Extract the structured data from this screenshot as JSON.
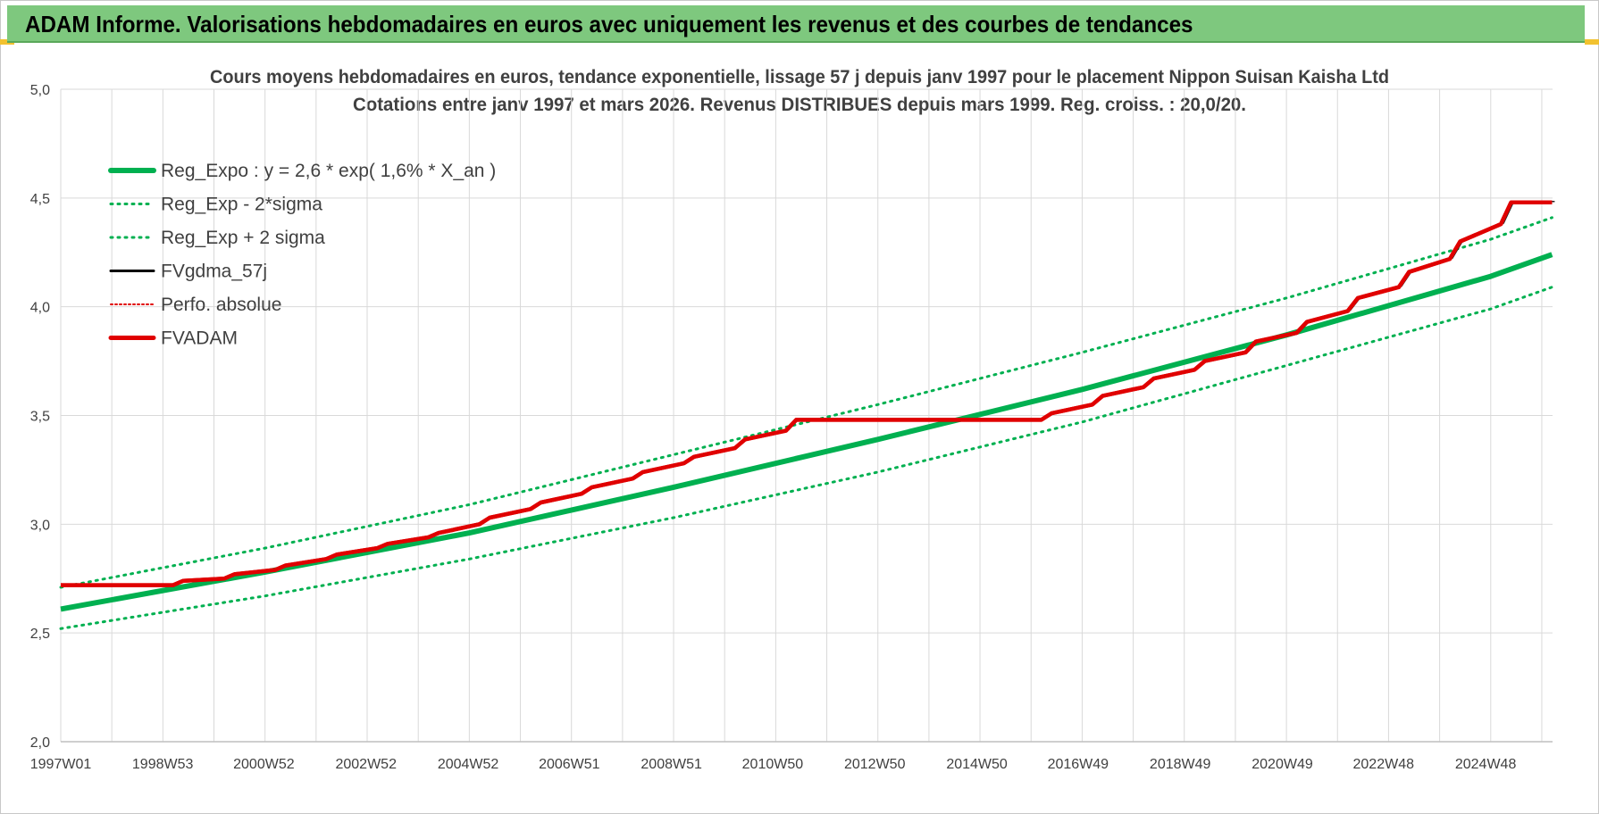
{
  "header": {
    "title": "ADAM Informe. Valorisations hebdomadaires en euros avec uniquement les revenus et des courbes de tendances"
  },
  "colors": {
    "header_bg": "#7ec87e",
    "reg_expo": "#00b050",
    "fvgdma": "#000000",
    "fvadam": "#e00000",
    "grid": "#d9d9d9"
  },
  "chart_data": {
    "type": "line",
    "title": "Cours moyens hebdomadaires en euros, tendance exponentielle, lissage 57 j depuis janv 1997  pour le placement Nippon Suisan Kaisha Ltd",
    "subtitle": "Cotations entre janv 1997 et mars 2026. Revenus DISTRIBUES depuis mars 1999. Reg. croiss. : 20,0/20.",
    "x_range": [
      "1997W01",
      "2026W12"
    ],
    "x_tick_labels": [
      "1997W01",
      "1998W53",
      "2000W52",
      "2002W52",
      "2004W52",
      "2006W51",
      "2008W51",
      "2010W50",
      "2012W50",
      "2014W50",
      "2016W49",
      "2018W49",
      "2020W49",
      "2022W48",
      "2024W48"
    ],
    "y_range": [
      2.0,
      5.0
    ],
    "y_tick_labels": [
      "2,0",
      "2,5",
      "3,0",
      "3,5",
      "4,0",
      "4,5",
      "5,0"
    ],
    "grid": true,
    "legend_position": "top-left",
    "legend": [
      {
        "label": "Reg_Expo : y = 2,6 * exp( 1,6% *  X_an )",
        "style": "solid-thick",
        "color": "#00b050"
      },
      {
        "label": "Reg_Exp - 2*sigma",
        "style": "dotted",
        "color": "#00b050"
      },
      {
        "label": "Reg_Exp + 2 sigma",
        "style": "dotted",
        "color": "#00b050"
      },
      {
        "label": "FVgdma_57j",
        "style": "solid",
        "color": "#000000"
      },
      {
        "label": "Perfo. absolue",
        "style": "dotted",
        "color": "#e00000"
      },
      {
        "label": "FVADAM",
        "style": "solid-thick",
        "color": "#e00000"
      }
    ],
    "series": [
      {
        "name": "Reg_Expo : y = 2,6 * exp( 1,6% *  X_an )",
        "x": [
          1997.0,
          2001.0,
          2005.0,
          2009.0,
          2013.0,
          2017.0,
          2021.0,
          2025.0,
          2026.2
        ],
        "y": [
          2.61,
          2.78,
          2.96,
          3.17,
          3.39,
          3.62,
          3.87,
          4.14,
          4.24
        ]
      },
      {
        "name": "Reg_Exp - 2*sigma",
        "x": [
          1997.0,
          2001.0,
          2005.0,
          2009.0,
          2013.0,
          2017.0,
          2021.0,
          2025.0,
          2026.2
        ],
        "y": [
          2.52,
          2.67,
          2.84,
          3.03,
          3.24,
          3.47,
          3.73,
          3.99,
          4.09
        ]
      },
      {
        "name": "Reg_Exp + 2 sigma",
        "x": [
          1997.0,
          2001.0,
          2005.0,
          2009.0,
          2013.0,
          2017.0,
          2021.0,
          2025.0,
          2026.2
        ],
        "y": [
          2.71,
          2.89,
          3.09,
          3.32,
          3.55,
          3.79,
          4.04,
          4.31,
          4.41
        ]
      },
      {
        "name": "FVADAM",
        "x": [
          1997.0,
          1999.2,
          1999.4,
          2000.2,
          2000.4,
          2001.2,
          2001.4,
          2002.2,
          2002.4,
          2003.2,
          2003.4,
          2004.2,
          2004.4,
          2005.2,
          2005.4,
          2006.2,
          2006.4,
          2007.2,
          2007.4,
          2008.2,
          2008.4,
          2009.2,
          2009.4,
          2010.2,
          2010.4,
          2011.2,
          2011.4,
          2012.2,
          2016.2,
          2016.4,
          2017.2,
          2017.4,
          2018.2,
          2018.4,
          2019.2,
          2019.4,
          2020.2,
          2020.4,
          2021.2,
          2021.4,
          2022.2,
          2022.4,
          2023.2,
          2023.4,
          2024.2,
          2024.4,
          2025.2,
          2025.4,
          2026.2
        ],
        "y": [
          2.72,
          2.72,
          2.74,
          2.75,
          2.77,
          2.79,
          2.81,
          2.84,
          2.86,
          2.89,
          2.91,
          2.94,
          2.96,
          3.0,
          3.03,
          3.07,
          3.1,
          3.14,
          3.17,
          3.21,
          3.24,
          3.28,
          3.31,
          3.35,
          3.39,
          3.43,
          3.48,
          3.48,
          3.48,
          3.51,
          3.55,
          3.59,
          3.63,
          3.67,
          3.71,
          3.75,
          3.79,
          3.84,
          3.88,
          3.93,
          3.98,
          4.04,
          4.09,
          4.16,
          4.22,
          4.3,
          4.38,
          4.48,
          4.48
        ]
      }
    ]
  }
}
